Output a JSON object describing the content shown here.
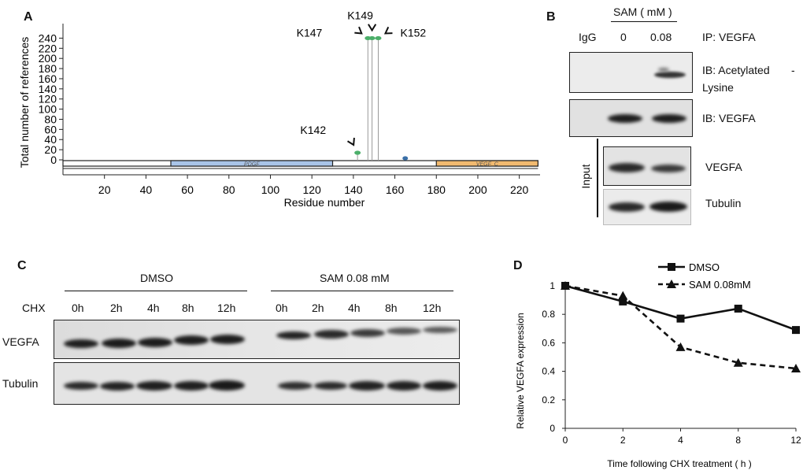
{
  "panel_labels": {
    "a": "A",
    "b": "B",
    "c": "C",
    "d": "D"
  },
  "panel_a": {
    "ylabel": "Total number of references",
    "xlabel": "Residue number",
    "y_ticks": [
      0,
      20,
      40,
      60,
      80,
      100,
      120,
      140,
      160,
      180,
      200,
      220,
      240
    ],
    "x_ticks": [
      20,
      40,
      60,
      80,
      100,
      120,
      140,
      160,
      180,
      200,
      220
    ],
    "xlim": [
      0,
      230
    ],
    "ylim": [
      0,
      250
    ],
    "domains": [
      {
        "name": "PDGF",
        "start": 52,
        "end": 130,
        "color": "#a9c4e8"
      },
      {
        "name": "VEGF_C",
        "start": 180,
        "end": 229,
        "color": "#f2ba70"
      }
    ],
    "sites": [
      {
        "label": "K142",
        "residue": 142,
        "count": 14,
        "color": "#4caf6a"
      },
      {
        "label": "K147",
        "residue": 147,
        "count": 240,
        "color": "#4caf6a"
      },
      {
        "label": "K149",
        "residue": 149,
        "count": 240,
        "color": "#4caf6a"
      },
      {
        "label": "K152",
        "residue": 152,
        "count": 240,
        "color": "#4caf6a"
      }
    ],
    "other_marker": {
      "residue": 165,
      "color": "#3a6fa8"
    }
  },
  "panel_b": {
    "treatment_header": "SAM ( mM )",
    "lane_labels": [
      "IgG",
      "0",
      "0.08"
    ],
    "ip_label": "IP: VEGFA",
    "ib_acetyl_line1": "IB: Acetylated",
    "ib_acetyl_dash": "-",
    "ib_acetyl_line2": "Lysine",
    "ib_vegfa": "IB: VEGFA",
    "input_label": "Input",
    "input_vegfa": "VEGFA",
    "input_tubulin": "Tubulin"
  },
  "panel_c": {
    "group1": "DMSO",
    "group2": "SAM  0.08 mM",
    "chx_label": "CHX",
    "timepoints": [
      "0h",
      "2h",
      "4h",
      "8h",
      "12h"
    ],
    "row1_label": "VEGFA",
    "row2_label": "Tubulin"
  },
  "chart_data": {
    "type": "line",
    "x": [
      0,
      2,
      4,
      8,
      12
    ],
    "x_categories": [
      "0",
      "2",
      "4",
      "8",
      "12"
    ],
    "ylabel": "Relative VEGFA expression",
    "xlabel": "Time following CHX treatment ( h )",
    "ylim": [
      0,
      1
    ],
    "y_ticks": [
      "0",
      "0.2",
      "0.4",
      "0.6",
      "0.8",
      "1"
    ],
    "legend": "top-right",
    "series": [
      {
        "name": "DMSO",
        "values": [
          1.0,
          0.89,
          0.77,
          0.84,
          0.69
        ],
        "style": "solid",
        "marker": "square"
      },
      {
        "name": "SAM  0.08mM",
        "values": [
          1.0,
          0.93,
          0.57,
          0.46,
          0.42
        ],
        "style": "dashed",
        "marker": "triangle"
      }
    ]
  }
}
